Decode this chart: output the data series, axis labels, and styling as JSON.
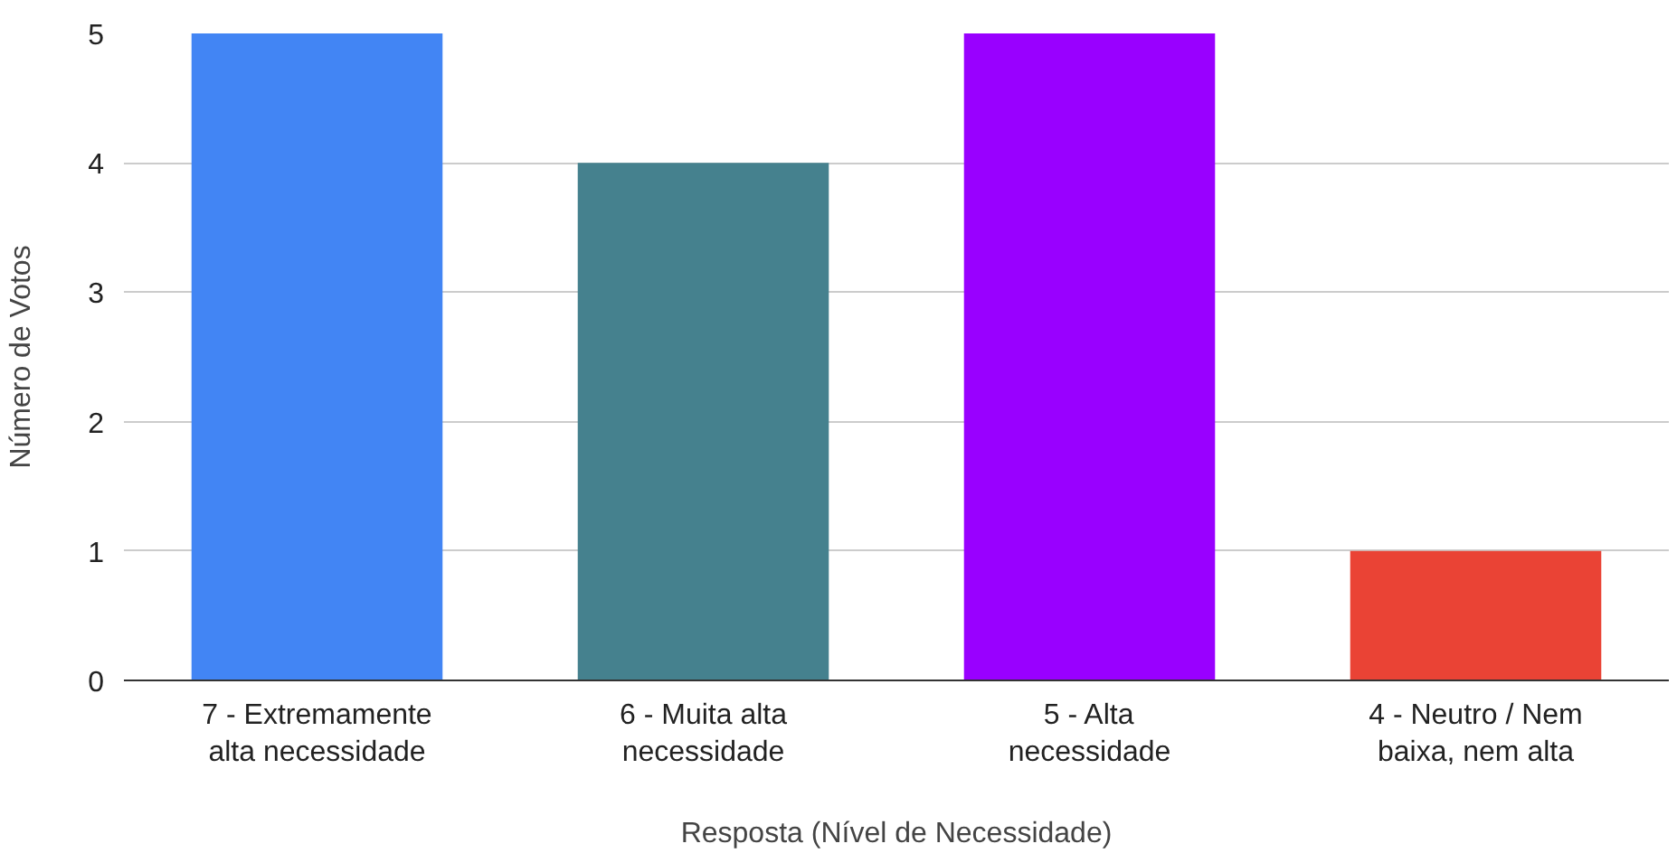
{
  "chart_data": {
    "type": "bar",
    "xlabel": "Resposta (Nível de Necessidade)",
    "ylabel": "Número de Votos",
    "categories": [
      "7 - Extremamente alta necessidade",
      "6 - Muita alta necessidade",
      "5 - Alta necessidade",
      "4 - Neutro / Nem baixa, nem alta"
    ],
    "values": [
      5,
      4,
      5,
      1
    ],
    "colors": [
      "#4285f4",
      "#45818e",
      "#9900ff",
      "#ea4335"
    ],
    "ylim": [
      0,
      5
    ],
    "yticks": [
      0,
      1,
      2,
      3,
      4,
      5
    ],
    "grid": "y"
  }
}
